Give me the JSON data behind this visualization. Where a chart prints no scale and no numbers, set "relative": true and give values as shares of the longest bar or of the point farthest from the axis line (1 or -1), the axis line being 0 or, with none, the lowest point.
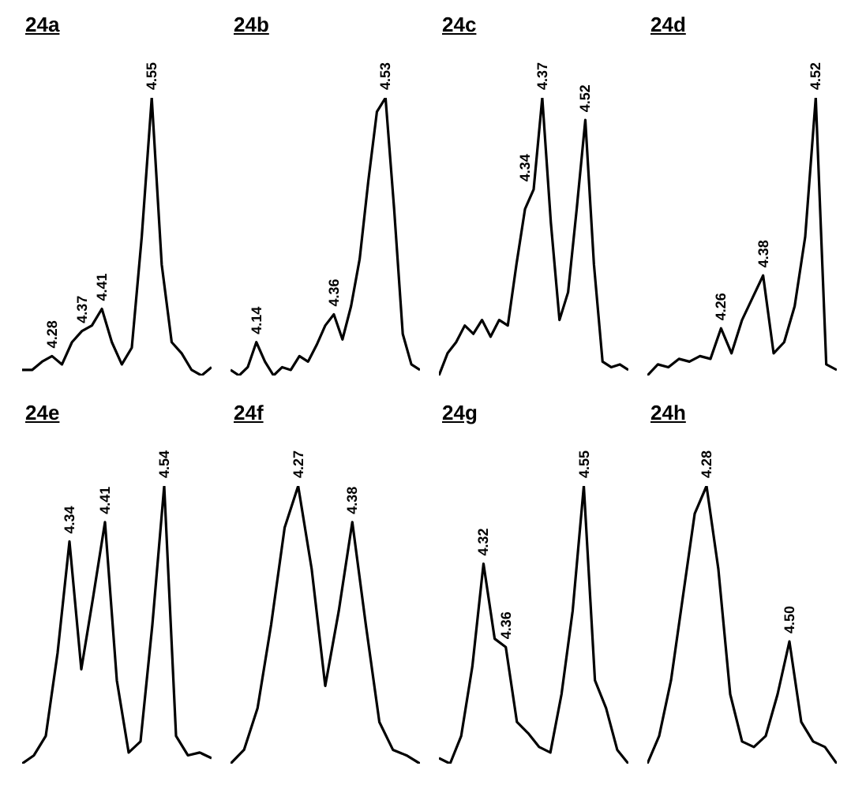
{
  "chart_data": [
    {
      "type": "line",
      "title": "24a",
      "relative": true,
      "tick_labels": false,
      "categories": [
        null,
        null,
        null,
        null,
        null,
        null,
        null,
        null,
        null,
        null,
        null,
        null,
        null,
        null,
        null,
        null,
        null,
        null,
        null,
        null
      ],
      "series": [
        {
          "color": "#000000",
          "values": [
            0.02,
            0.02,
            0.05,
            0.07,
            0.04,
            0.12,
            0.16,
            0.18,
            0.24,
            0.12,
            0.04,
            0.1,
            0.5,
            1,
            0.4,
            0.12,
            0.08,
            0.02,
            0,
            0.03
          ]
        }
      ],
      "annotations": [
        {
          "text": "4.28",
          "y": 0.07
        },
        {
          "text": "4.37",
          "y": 0.16
        },
        {
          "text": "4.41",
          "y": 0.24
        },
        {
          "text": "4.55",
          "y": 1
        }
      ]
    },
    {
      "type": "line",
      "title": "24b",
      "relative": true,
      "tick_labels": false,
      "categories": [
        null,
        null,
        null,
        null,
        null,
        null,
        null,
        null,
        null,
        null,
        null,
        null,
        null,
        null,
        null,
        null,
        null,
        null,
        null,
        null,
        null,
        null,
        null
      ],
      "series": [
        {
          "color": "#000000",
          "values": [
            0.02,
            0,
            0.03,
            0.12,
            0.05,
            0,
            0.03,
            0.02,
            0.07,
            0.05,
            0.11,
            0.18,
            0.22,
            0.13,
            0.25,
            0.42,
            0.7,
            0.95,
            1,
            0.6,
            0.15,
            0.04,
            0.02
          ]
        }
      ],
      "annotations": [
        {
          "text": "4.14",
          "y": 0.12
        },
        {
          "text": "4.36",
          "y": 0.22
        },
        {
          "text": "4.53",
          "y": 1
        }
      ]
    },
    {
      "type": "line",
      "title": "24c",
      "relative": true,
      "tick_labels": false,
      "categories": [
        null,
        null,
        null,
        null,
        null,
        null,
        null,
        null,
        null,
        null,
        null,
        null,
        null,
        null,
        null,
        null,
        null,
        null,
        null,
        null,
        null,
        null,
        null
      ],
      "series": [
        {
          "color": "#000000",
          "values": [
            0,
            0.08,
            0.12,
            0.18,
            0.15,
            0.2,
            0.14,
            0.2,
            0.18,
            0.4,
            0.6,
            0.67,
            1,
            0.55,
            0.2,
            0.3,
            0.6,
            0.92,
            0.4,
            0.05,
            0.03,
            0.04,
            0.02
          ]
        }
      ],
      "annotations": [
        {
          "text": "4.34",
          "y": 0.67
        },
        {
          "text": "4.37",
          "y": 1
        },
        {
          "text": "4.52",
          "y": 0.92
        }
      ]
    },
    {
      "type": "line",
      "title": "24d",
      "relative": true,
      "tick_labels": false,
      "categories": [
        null,
        null,
        null,
        null,
        null,
        null,
        null,
        null,
        null,
        null,
        null,
        null,
        null,
        null,
        null,
        null,
        null,
        null,
        null
      ],
      "series": [
        {
          "color": "#000000",
          "values": [
            0,
            0.04,
            0.03,
            0.06,
            0.05,
            0.07,
            0.06,
            0.17,
            0.08,
            0.2,
            0.28,
            0.36,
            0.08,
            0.12,
            0.25,
            0.5,
            1,
            0.04,
            0.02
          ]
        }
      ],
      "annotations": [
        {
          "text": "4.26",
          "y": 0.17
        },
        {
          "text": "4.38",
          "y": 0.36
        },
        {
          "text": "4.52",
          "y": 1
        }
      ]
    },
    {
      "type": "line",
      "title": "24e",
      "relative": true,
      "tick_labels": false,
      "categories": [
        null,
        null,
        null,
        null,
        null,
        null,
        null,
        null,
        null,
        null,
        null,
        null,
        null,
        null,
        null,
        null,
        null
      ],
      "series": [
        {
          "color": "#000000",
          "values": [
            0,
            0.03,
            0.1,
            0.4,
            0.8,
            0.34,
            0.6,
            0.87,
            0.3,
            0.04,
            0.08,
            0.5,
            1,
            0.1,
            0.03,
            0.04,
            0.02
          ]
        }
      ],
      "annotations": [
        {
          "text": "4.34",
          "y": 0.8
        },
        {
          "text": "4.41",
          "y": 0.87
        },
        {
          "text": "4.54",
          "y": 1
        }
      ]
    },
    {
      "type": "line",
      "title": "24f",
      "relative": true,
      "tick_labels": false,
      "categories": [
        null,
        null,
        null,
        null,
        null,
        null,
        null,
        null,
        null,
        null,
        null,
        null,
        null,
        null,
        null
      ],
      "series": [
        {
          "color": "#000000",
          "values": [
            0,
            0.05,
            0.2,
            0.5,
            0.85,
            1,
            0.7,
            0.28,
            0.55,
            0.87,
            0.5,
            0.15,
            0.05,
            0.03,
            0
          ]
        }
      ],
      "annotations": [
        {
          "text": "4.27",
          "y": 1
        },
        {
          "text": "4.38",
          "y": 0.87
        }
      ]
    },
    {
      "type": "line",
      "title": "24g",
      "relative": true,
      "tick_labels": false,
      "categories": [
        null,
        null,
        null,
        null,
        null,
        null,
        null,
        null,
        null,
        null,
        null,
        null,
        null,
        null,
        null,
        null,
        null,
        null
      ],
      "series": [
        {
          "color": "#000000",
          "values": [
            0.02,
            0,
            0.1,
            0.35,
            0.72,
            0.45,
            0.42,
            0.15,
            0.11,
            0.06,
            0.04,
            0.25,
            0.55,
            1,
            0.3,
            0.2,
            0.05,
            0
          ]
        }
      ],
      "annotations": [
        {
          "text": "4.32",
          "y": 0.72
        },
        {
          "text": "4.36",
          "y": 0.42
        },
        {
          "text": "4.55",
          "y": 1
        }
      ]
    },
    {
      "type": "line",
      "title": "24h",
      "relative": true,
      "tick_labels": false,
      "categories": [
        null,
        null,
        null,
        null,
        null,
        null,
        null,
        null,
        null,
        null,
        null,
        null,
        null,
        null,
        null,
        null,
        null
      ],
      "series": [
        {
          "color": "#000000",
          "values": [
            0,
            0.1,
            0.3,
            0.6,
            0.9,
            1,
            0.7,
            0.25,
            0.08,
            0.06,
            0.1,
            0.25,
            0.44,
            0.15,
            0.08,
            0.06,
            0
          ]
        }
      ],
      "annotations": [
        {
          "text": "4.28",
          "y": 1
        },
        {
          "text": "4.50",
          "y": 0.44
        }
      ]
    }
  ]
}
